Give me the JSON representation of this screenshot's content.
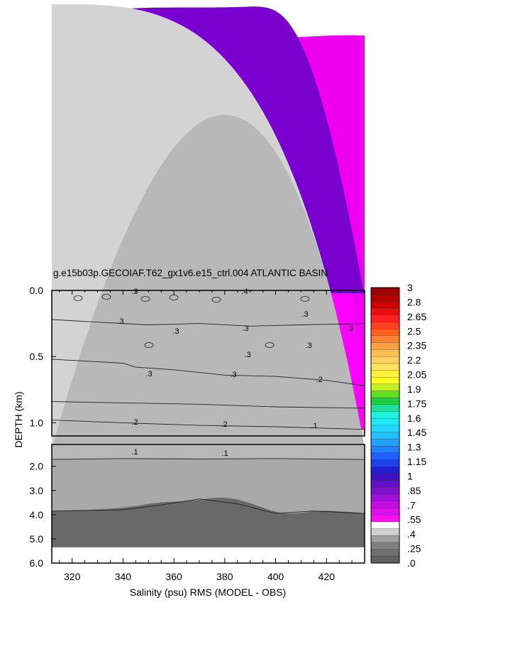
{
  "chart_data": {
    "type": "contour",
    "title": "g.e15b03p.GECOIAF.T62_gx1v6.e15_ctrl.004 ATLANTIC BASIN",
    "xlabel": "Salinity (psu) RMS (MODEL - OBS)",
    "ylabel": "DEPTH (km)",
    "x_ticks": [
      "320",
      "340",
      "360",
      "380",
      "400",
      "420"
    ],
    "x_range": [
      312,
      435
    ],
    "upper_panel": {
      "y_range": [
        0.0,
        1.1
      ],
      "y_ticks": [
        "0.0",
        "0.5",
        "1.0"
      ]
    },
    "lower_panel": {
      "y_range": [
        1.1,
        6.0
      ],
      "y_ticks": [
        "2.0",
        "3.0",
        "4.0",
        "5.0",
        "6.0"
      ]
    },
    "contour_labels": [
      ".3",
      ".4",
      ".3",
      ".3",
      ".3",
      ".3",
      ".3",
      ".3",
      ".3",
      ".3",
      ".3",
      ".2",
      ".2",
      ".2",
      ".1",
      ".1",
      ".1"
    ],
    "contour_lines": [
      {
        "level": 0.3,
        "x": [
          312,
          330,
          350,
          370,
          390,
          410,
          435
        ],
        "depth": [
          0.22,
          0.24,
          0.26,
          0.25,
          0.27,
          0.26,
          0.25
        ]
      },
      {
        "level": 0.3,
        "x": [
          312,
          340,
          345,
          360,
          380,
          400,
          420,
          435
        ],
        "depth": [
          0.52,
          0.55,
          0.58,
          0.6,
          0.64,
          0.65,
          0.68,
          0.72
        ]
      },
      {
        "level": 0.25,
        "x": [
          312,
          340,
          370,
          400,
          435
        ],
        "depth": [
          0.84,
          0.85,
          0.86,
          0.88,
          0.89
        ]
      },
      {
        "level": 0.2,
        "x": [
          312,
          340,
          370,
          400,
          435
        ],
        "depth": [
          0.98,
          1.0,
          1.02,
          1.03,
          1.05
        ]
      },
      {
        "level": 0.1,
        "x": [
          312,
          340,
          370,
          400,
          435
        ],
        "depth": [
          1.72,
          1.68,
          1.7,
          1.68,
          1.72
        ]
      },
      {
        "level": 0.05,
        "x": [
          312,
          340,
          355,
          370,
          385,
          400,
          415,
          435
        ],
        "depth": [
          3.85,
          3.8,
          3.6,
          3.35,
          3.55,
          3.95,
          3.85,
          3.95
        ]
      }
    ],
    "colorbar": {
      "labels": [
        "3",
        "2.8",
        "2.65",
        "2.5",
        "2.35",
        "2.2",
        "2.05",
        "1.9",
        "1.75",
        "1.6",
        "1.45",
        "1.3",
        "1.15",
        "1",
        ".85",
        ".7",
        ".55",
        ".4",
        ".25",
        ".0"
      ],
      "colors": [
        "#a00000",
        "#b80000",
        "#d00000",
        "#e81010",
        "#ff2020",
        "#ff4020",
        "#ff6020",
        "#ff8030",
        "#ffa040",
        "#ffc050",
        "#ffd060",
        "#ffe060",
        "#fff040",
        "#ffff20",
        "#c0f020",
        "#60e020",
        "#20d040",
        "#20e0a0",
        "#20f0e0",
        "#20e8f8",
        "#20d8ff",
        "#20c0ff",
        "#20a0ff",
        "#2080ff",
        "#2060ff",
        "#2040e8",
        "#2020d0",
        "#4010c0",
        "#6010c8",
        "#8010d0",
        "#a010d8",
        "#c010e0",
        "#e010e8",
        "#ff10f0",
        "#ffffff",
        "#d0d0d0",
        "#a0a0a0",
        "#808080",
        "#707070",
        "#606060"
      ]
    },
    "fills": {
      "magenta": "#ff00ff",
      "light_magenta": "#ee00ee",
      "mid_magenta": "#dd00dd",
      "deep_purple": "#7a00d0",
      "blue_top": "#1020c0",
      "light_gray": "#d3d3d3",
      "mid_gray": "#a9a9a9",
      "dark_gray": "#808080",
      "darkest_gray": "#696969"
    }
  }
}
